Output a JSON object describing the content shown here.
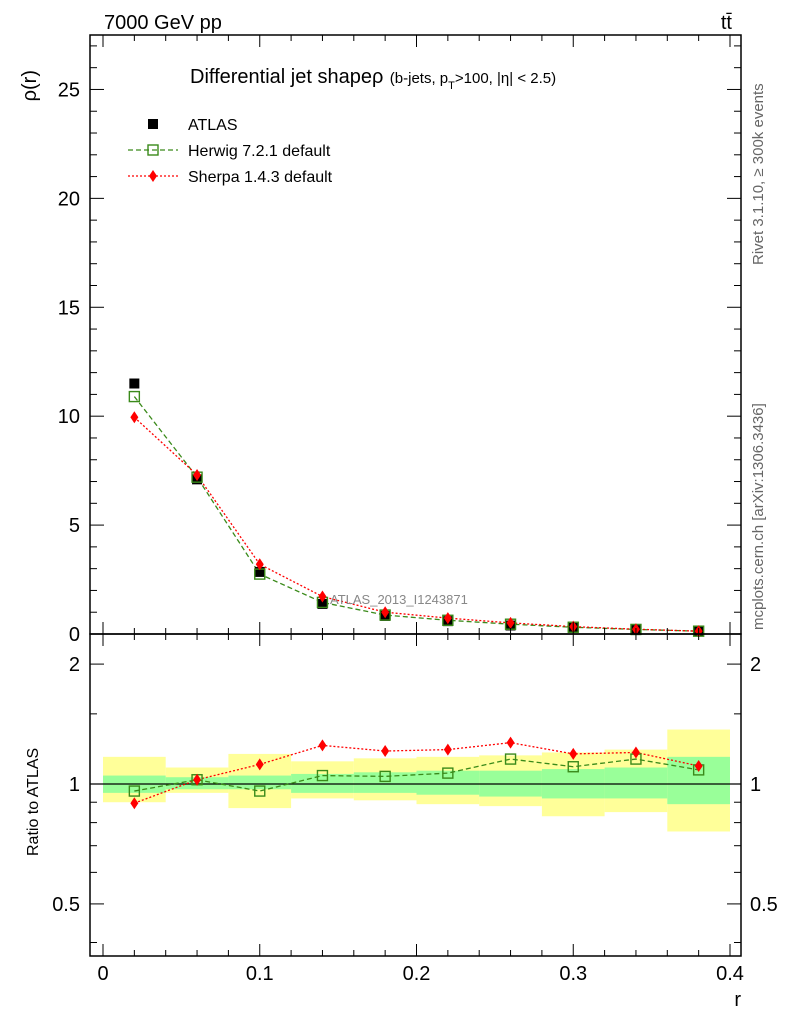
{
  "header": {
    "left": "7000 GeV pp",
    "right": "tt̄"
  },
  "side_labels": {
    "rivet": "Rivet 3.1.10, ≥ 300k events",
    "mcplots": "mcplots.cern.ch [arXiv:1306.3436]"
  },
  "watermark": "ATLAS_2013_I1243871",
  "chart_data": [
    {
      "type": "line",
      "title_main": "Differential jet shapeρ",
      "title_sub": "(b-jets, p_T>100, |η| < 2.5)",
      "ylabel": "ρ(r)",
      "xlabel": "r",
      "xlim": [
        0,
        0.4
      ],
      "ylim": [
        0,
        27.5
      ],
      "xticks": [
        "0",
        "0.1",
        "0.2",
        "0.3",
        "0.4"
      ],
      "yticks": [
        "0",
        "5",
        "10",
        "15",
        "20",
        "25"
      ],
      "legend_position": "top-left",
      "x": [
        0.02,
        0.06,
        0.1,
        0.14,
        0.18,
        0.22,
        0.26,
        0.3,
        0.34,
        0.38
      ],
      "series": [
        {
          "name": "ATLAS",
          "color": "#000000",
          "marker": "filled-square",
          "values": [
            11.5,
            7.1,
            2.85,
            1.38,
            0.83,
            0.59,
            0.39,
            0.28,
            0.18,
            0.12
          ]
        },
        {
          "name": "Herwig 7.2.1 default",
          "color": "#3a8a1a",
          "marker": "open-square",
          "dash": "dashed",
          "values": [
            10.9,
            7.2,
            2.75,
            1.45,
            0.87,
            0.63,
            0.45,
            0.31,
            0.21,
            0.13
          ]
        },
        {
          "name": "Sherpa 1.4.3 default",
          "color": "#ff0000",
          "marker": "diamond",
          "dash": "dotted",
          "values": [
            9.95,
            7.3,
            3.2,
            1.72,
            1.0,
            0.73,
            0.51,
            0.34,
            0.22,
            0.13
          ]
        }
      ]
    },
    {
      "type": "line",
      "ylabel": "Ratio to ATLAS",
      "xlabel": "r",
      "xlim": [
        0,
        0.4
      ],
      "ylim": [
        0.37,
        2.38
      ],
      "scale": "log",
      "xticks": [
        "0",
        "0.1",
        "0.2",
        "0.3",
        "0.4"
      ],
      "yticks": [
        "0.5",
        "1",
        "2"
      ],
      "bins": [
        [
          0.0,
          0.04
        ],
        [
          0.04,
          0.08
        ],
        [
          0.08,
          0.12
        ],
        [
          0.12,
          0.16
        ],
        [
          0.16,
          0.2
        ],
        [
          0.2,
          0.24
        ],
        [
          0.24,
          0.28
        ],
        [
          0.28,
          0.32
        ],
        [
          0.32,
          0.36
        ],
        [
          0.36,
          0.4
        ]
      ],
      "band_stat": {
        "color": "#99ff99",
        "lo": [
          0.95,
          0.97,
          0.97,
          0.95,
          0.95,
          0.94,
          0.93,
          0.92,
          0.92,
          0.89
        ],
        "hi": [
          1.05,
          1.04,
          1.05,
          1.06,
          1.07,
          1.08,
          1.08,
          1.09,
          1.1,
          1.17
        ]
      },
      "band_total": {
        "color": "#ffff99",
        "lo": [
          0.9,
          0.95,
          0.87,
          0.92,
          0.91,
          0.89,
          0.88,
          0.83,
          0.85,
          0.76
        ],
        "hi": [
          1.17,
          1.1,
          1.19,
          1.14,
          1.16,
          1.17,
          1.18,
          1.2,
          1.22,
          1.37
        ]
      },
      "series": [
        {
          "name": "Herwig 7.2.1 default",
          "color": "#3a8a1a",
          "marker": "open-square",
          "dash": "dashed",
          "values": [
            0.96,
            1.025,
            0.96,
            1.05,
            1.045,
            1.065,
            1.155,
            1.105,
            1.155,
            1.085
          ]
        },
        {
          "name": "Sherpa 1.4.3 default",
          "color": "#ff0000",
          "marker": "diamond",
          "dash": "dotted",
          "values": [
            0.895,
            1.025,
            1.12,
            1.25,
            1.21,
            1.22,
            1.27,
            1.19,
            1.2,
            1.11
          ]
        }
      ]
    }
  ]
}
